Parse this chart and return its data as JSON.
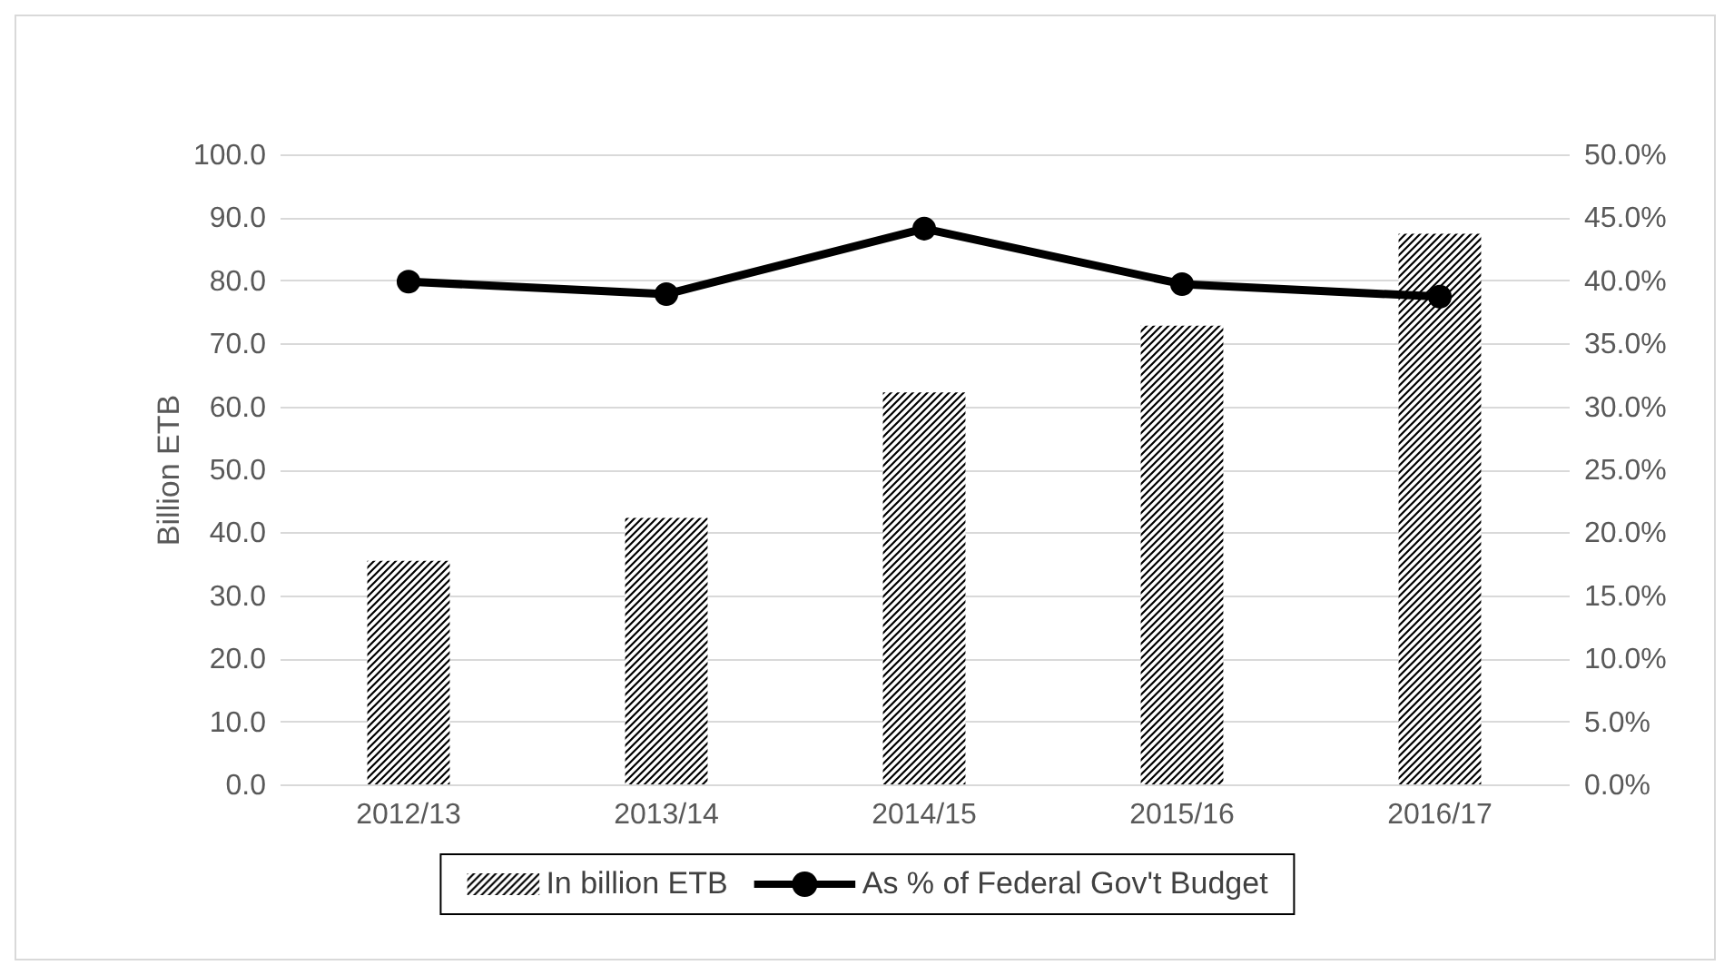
{
  "chart_data": {
    "type": "bar",
    "ylabel": "Billion ETB",
    "categories": [
      "2012/13",
      "2013/14",
      "2014/15",
      "2015/16",
      "2016/17"
    ],
    "series": [
      {
        "name": "In billion ETB",
        "color": "#000000",
        "values": [
          35.5,
          42.3,
          62.2,
          72.8,
          87.4
        ]
      },
      {
        "name": "As % of Federal Gov't Budget",
        "type": "line",
        "axis": "y2",
        "color": "#000000",
        "values": [
          39.9,
          38.9,
          44.1,
          39.7,
          38.7
        ]
      }
    ],
    "ylim": [
      0,
      100
    ],
    "yticks": [
      {
        "value": 0,
        "label": "0.0"
      },
      {
        "value": 10,
        "label": "10.0"
      },
      {
        "value": 20,
        "label": "20.0"
      },
      {
        "value": 30,
        "label": "30.0"
      },
      {
        "value": 40,
        "label": "40.0"
      },
      {
        "value": 50,
        "label": "50.0"
      },
      {
        "value": 60,
        "label": "60.0"
      },
      {
        "value": 70,
        "label": "70.0"
      },
      {
        "value": 80,
        "label": "80.0"
      },
      {
        "value": 90,
        "label": "90.0"
      },
      {
        "value": 100,
        "label": "100.0"
      }
    ],
    "y2lim": [
      0,
      50
    ],
    "y2ticks": [
      {
        "value": 0,
        "label": "0.0%"
      },
      {
        "value": 5,
        "label": "5.0%"
      },
      {
        "value": 10,
        "label": "10.0%"
      },
      {
        "value": 15,
        "label": "15.0%"
      },
      {
        "value": 20,
        "label": "20.0%"
      },
      {
        "value": 25,
        "label": "25.0%"
      },
      {
        "value": 30,
        "label": "30.0%"
      },
      {
        "value": 35,
        "label": "35.0%"
      },
      {
        "value": 40,
        "label": "40.0%"
      },
      {
        "value": 45,
        "label": "45.0%"
      },
      {
        "value": 50,
        "label": "50.0%"
      }
    ],
    "grid": "y",
    "legend": "bottom",
    "marker": "circle",
    "line_style": "solid"
  }
}
